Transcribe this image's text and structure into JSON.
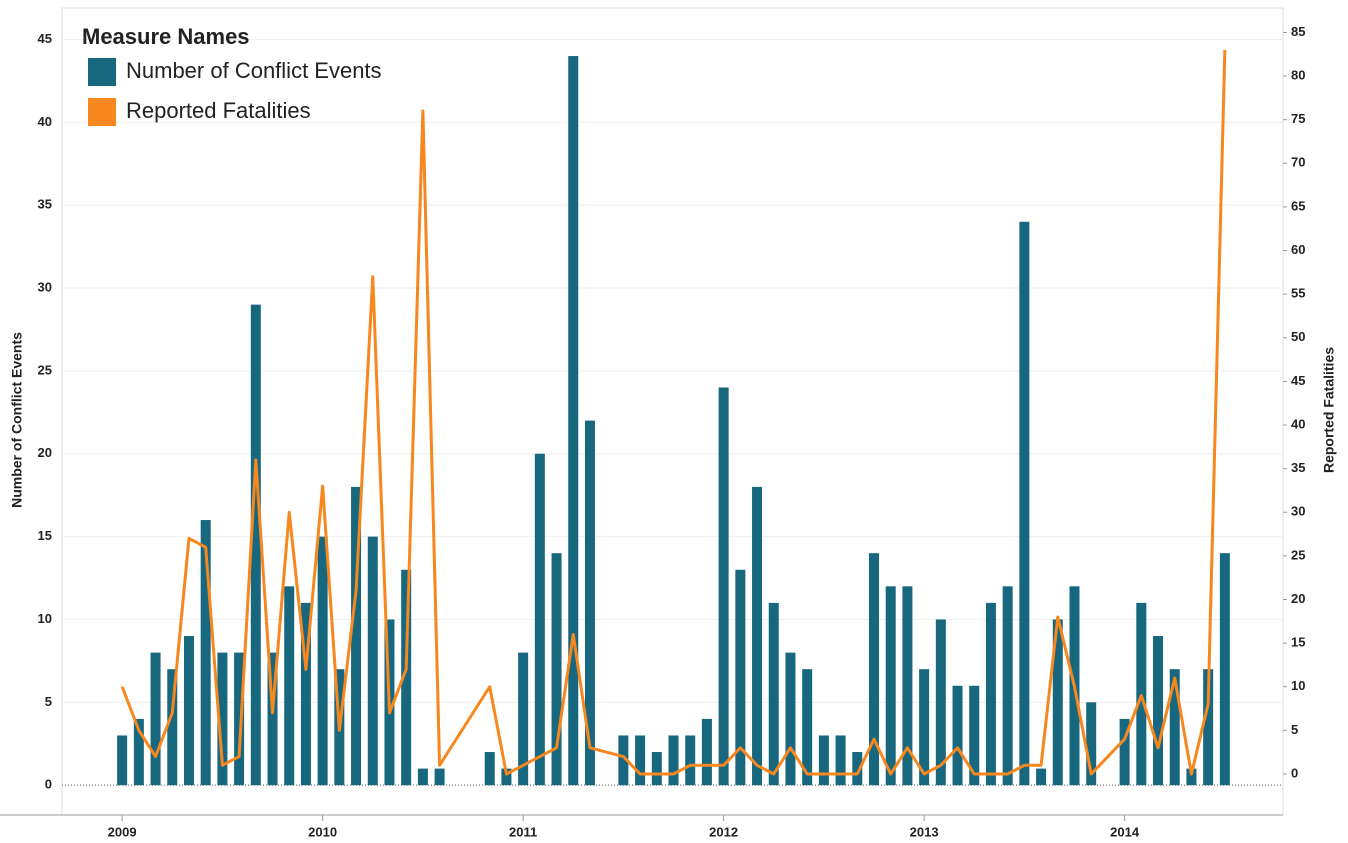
{
  "chart_data": {
    "type": "bar-line",
    "legend_title": "Measure Names",
    "y_label": "Number of Conflict Events",
    "y2_label": "Reported Fatalities",
    "x": [
      "2009-01",
      "2009-02",
      "2009-03",
      "2009-04",
      "2009-05",
      "2009-06",
      "2009-07",
      "2009-08",
      "2009-09",
      "2009-10",
      "2009-11",
      "2009-12",
      "2010-01",
      "2010-02",
      "2010-03",
      "2010-04",
      "2010-05",
      "2010-06",
      "2010-07",
      "2010-08",
      "2010-11",
      "2010-12",
      "2011-01",
      "2011-02",
      "2011-03",
      "2011-04",
      "2011-05",
      "2011-07",
      "2011-08",
      "2011-09",
      "2011-10",
      "2011-11",
      "2011-12",
      "2012-01",
      "2012-02",
      "2012-03",
      "2012-04",
      "2012-05",
      "2012-06",
      "2012-07",
      "2012-08",
      "2012-09",
      "2012-10",
      "2012-11",
      "2012-12",
      "2013-01",
      "2013-02",
      "2013-03",
      "2013-04",
      "2013-05",
      "2013-06",
      "2013-07",
      "2013-08",
      "2013-09",
      "2013-10",
      "2013-11",
      "2014-01",
      "2014-02",
      "2014-03",
      "2014-04",
      "2014-05",
      "2014-06",
      "2014-07"
    ],
    "series": [
      {
        "name": "Number of Conflict Events",
        "color": "#17677e",
        "type": "bar",
        "values": [
          3,
          4,
          8,
          7,
          9,
          16,
          8,
          8,
          29,
          8,
          12,
          11,
          15,
          7,
          18,
          15,
          10,
          13,
          1,
          1,
          2,
          1,
          8,
          20,
          14,
          44,
          22,
          3,
          3,
          2,
          3,
          3,
          4,
          24,
          13,
          18,
          11,
          8,
          7,
          3,
          3,
          2,
          14,
          12,
          12,
          7,
          10,
          6,
          6,
          11,
          12,
          34,
          1,
          10,
          12,
          5,
          4,
          11,
          9,
          7,
          1,
          7,
          14
        ]
      },
      {
        "name": "Reported Fatalities",
        "color": "#f7871f",
        "type": "line",
        "axis": "y2",
        "values": [
          10,
          5,
          2,
          7,
          27,
          26,
          1,
          2,
          36,
          7,
          30,
          12,
          33,
          5,
          21,
          57,
          7,
          12,
          76,
          1,
          10,
          0,
          1,
          2,
          3,
          16,
          3,
          2,
          0,
          0,
          0,
          1,
          1,
          1,
          3,
          1,
          0,
          3,
          0,
          0,
          0,
          0,
          4,
          0,
          3,
          0,
          1,
          3,
          0,
          0,
          0,
          1,
          1,
          18,
          10,
          0,
          4,
          9,
          3,
          11,
          0,
          8,
          83
        ]
      }
    ],
    "xlim": [
      2008.7,
      2014.79
    ],
    "xticks": [
      2009,
      2010,
      2011,
      2012,
      2013,
      2014
    ],
    "ylim": [
      -1.8,
      46.9
    ],
    "yticks": [
      0,
      5,
      10,
      15,
      20,
      25,
      30,
      35,
      40,
      45
    ],
    "y2lim": [
      -4.7,
      87.8
    ],
    "y2ticks": [
      0,
      5,
      10,
      15,
      20,
      25,
      30,
      35,
      40,
      45,
      50,
      55,
      60,
      65,
      70,
      75,
      80,
      85
    ],
    "grid": true
  }
}
